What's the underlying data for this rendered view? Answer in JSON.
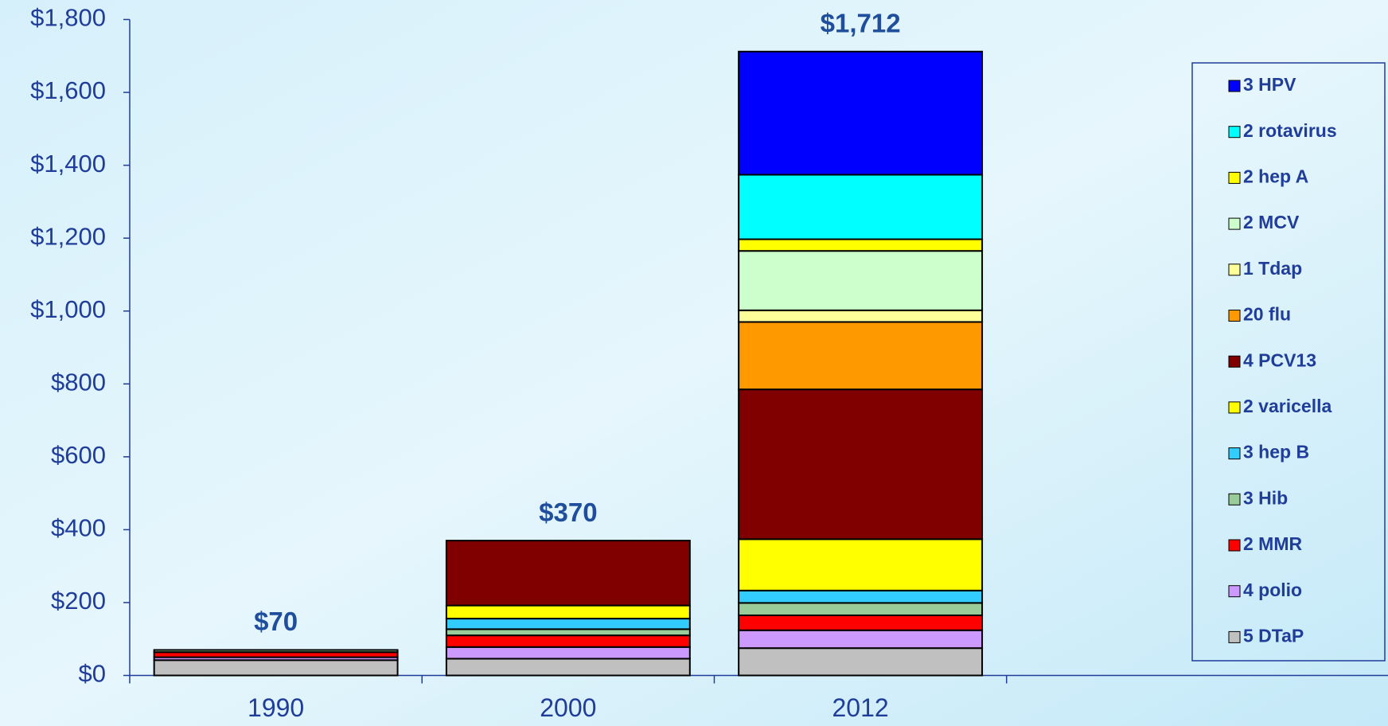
{
  "chart_data": {
    "type": "stacked_bar",
    "categories": [
      "1990",
      "2000",
      "2012"
    ],
    "series": [
      {
        "name": "5 DTaP",
        "color": "#c0c0c0",
        "values": [
          42,
          46,
          75
        ]
      },
      {
        "name": "4 polio",
        "color": "#cc99ff",
        "values": [
          8,
          32,
          49
        ]
      },
      {
        "name": "2 MMR",
        "color": "#ff0000",
        "values": [
          14,
          32,
          41
        ]
      },
      {
        "name": "3 Hib",
        "color": "#99cc99",
        "values": [
          6,
          17,
          34
        ]
      },
      {
        "name": "3 hep B",
        "color": "#33ccff",
        "values": [
          null,
          29,
          34
        ]
      },
      {
        "name": "2 varicella",
        "color": "#ffff00",
        "values": [
          null,
          36,
          141
        ]
      },
      {
        "name": "4 PCV13",
        "color": "#800000",
        "values": [
          null,
          178,
          411
        ]
      },
      {
        "name": "20 flu",
        "color": "#ff9900",
        "values": [
          null,
          null,
          185
        ]
      },
      {
        "name": "1 Tdap",
        "color": "#ffff99",
        "values": [
          null,
          null,
          32
        ]
      },
      {
        "name": "2 MCV",
        "color": "#ccffcc",
        "values": [
          null,
          null,
          163
        ]
      },
      {
        "name": "2 hep A",
        "color": "#ffff00",
        "values": [
          null,
          null,
          32
        ]
      },
      {
        "name": "2 rotavirus",
        "color": "#00ffff",
        "values": [
          null,
          null,
          177
        ]
      },
      {
        "name": "3 HPV",
        "color": "#0000ff",
        "values": [
          null,
          null,
          338
        ]
      }
    ],
    "totals": [
      70,
      370,
      1712
    ],
    "total_labels": [
      "$70",
      "$370",
      "$1,712"
    ],
    "ylim": [
      0,
      1800
    ],
    "yticks": [
      {
        "value": 0,
        "label": "$0"
      },
      {
        "value": 200,
        "label": "$200"
      },
      {
        "value": 400,
        "label": "$400"
      },
      {
        "value": 600,
        "label": "$600"
      },
      {
        "value": 800,
        "label": "$800"
      },
      {
        "value": 1000,
        "label": "$1,000"
      },
      {
        "value": 1200,
        "label": "$1,200"
      },
      {
        "value": 1400,
        "label": "$1,400"
      },
      {
        "value": 1600,
        "label": "$1,600"
      },
      {
        "value": 1800,
        "label": "$1,800"
      }
    ],
    "legend": "right"
  }
}
